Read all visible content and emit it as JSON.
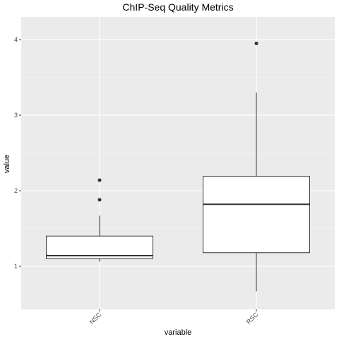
{
  "chart_data": {
    "type": "boxplot",
    "title": "ChIP-Seq Quality Metrics",
    "xlabel": "variable",
    "ylabel": "value",
    "ylim": [
      0.43,
      4.3
    ],
    "yticks": [
      1,
      2,
      3,
      4
    ],
    "categories": [
      "NSC",
      "RSC"
    ],
    "boxes": [
      {
        "category": "NSC",
        "whisker_low": 1.06,
        "q1": 1.1,
        "median": 1.14,
        "q3": 1.4,
        "whisker_high": 1.67,
        "outliers": [
          1.88,
          2.14
        ]
      },
      {
        "category": "RSC",
        "whisker_low": 0.67,
        "q1": 1.18,
        "median": 1.82,
        "q3": 2.19,
        "whisker_high": 3.3,
        "outliers": [
          3.95
        ]
      }
    ],
    "grid": true,
    "panel_color": "#ebebeb",
    "box_fill": "#ffffff",
    "box_stroke": "#333333"
  }
}
